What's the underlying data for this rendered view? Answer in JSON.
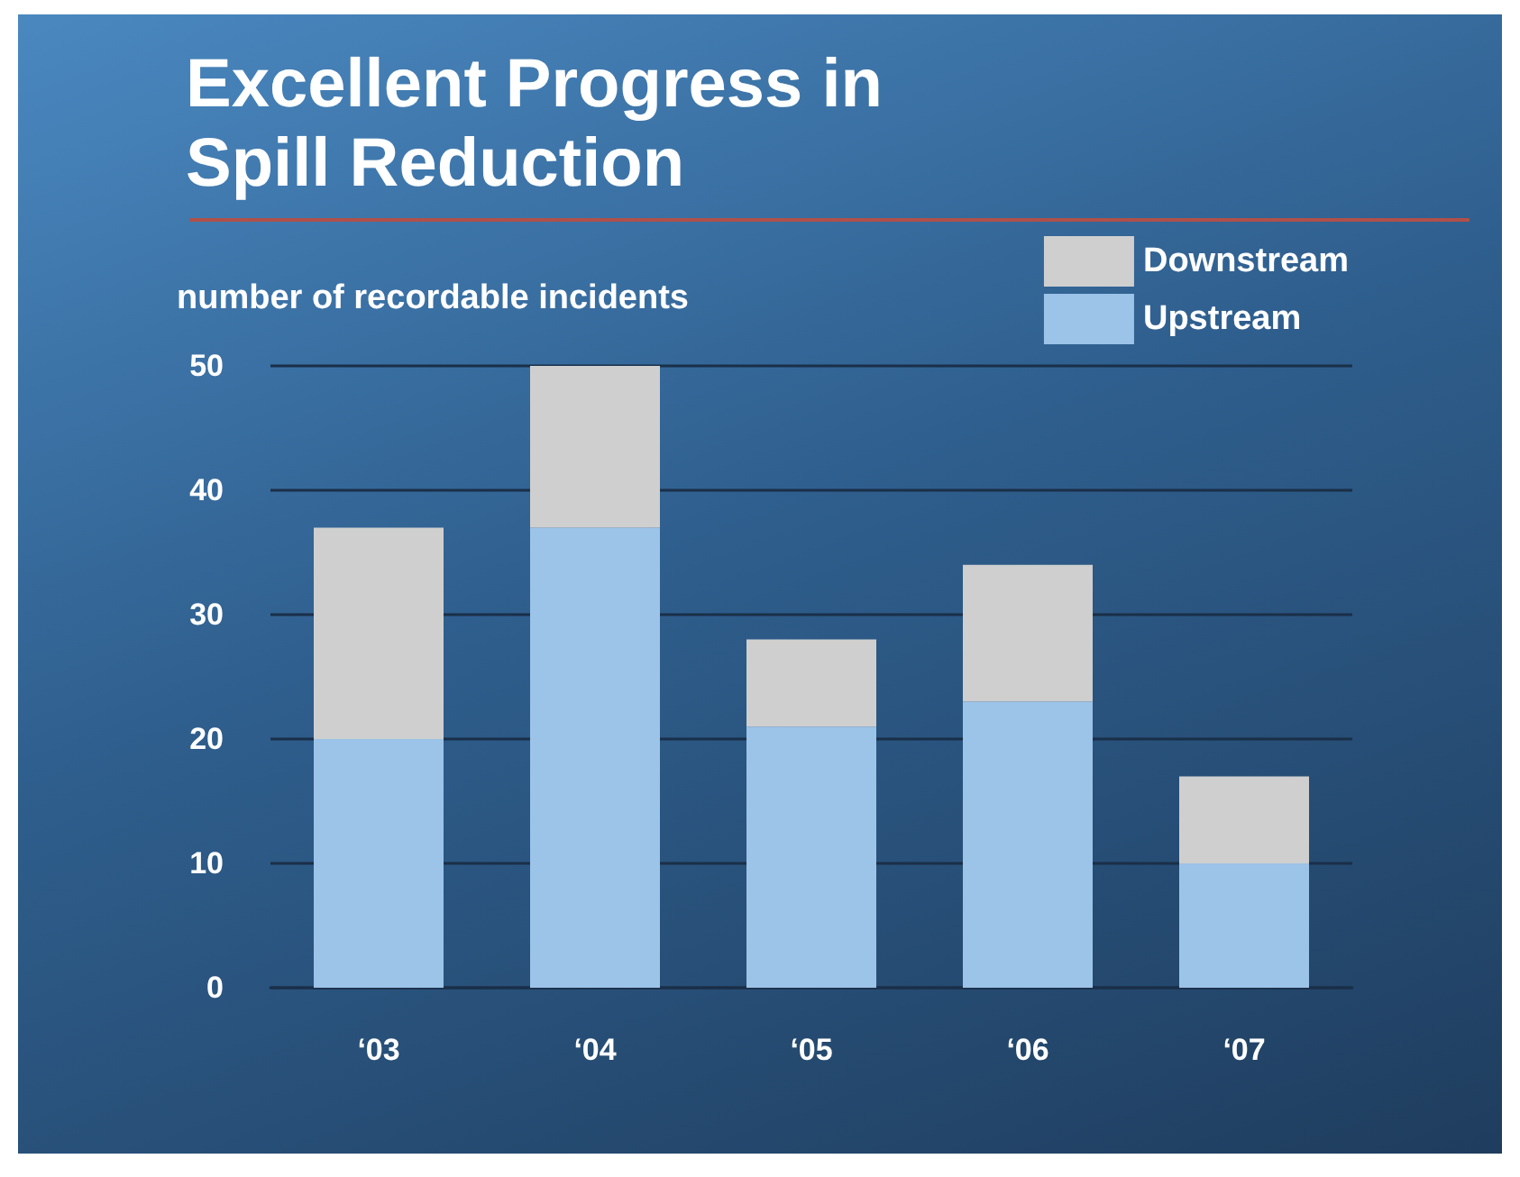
{
  "chart_data": {
    "type": "bar",
    "title": "Excellent Progress in Spill Reduction",
    "ylabel": "number of recordable incidents",
    "categories": [
      "‘03",
      "‘04",
      "‘05",
      "‘06",
      "‘07"
    ],
    "series": [
      {
        "name": "Upstream",
        "color": "#9cc3e8",
        "values": [
          20,
          37,
          21,
          23,
          10
        ]
      },
      {
        "name": "Downstream",
        "color": "#cfcfcf",
        "values": [
          17,
          13,
          7,
          11,
          7
        ]
      }
    ],
    "stacked": true,
    "ylim": [
      0,
      50
    ],
    "yticks": [
      0,
      10,
      20,
      30,
      40,
      50
    ],
    "grid": "y",
    "legend": "top right"
  }
}
